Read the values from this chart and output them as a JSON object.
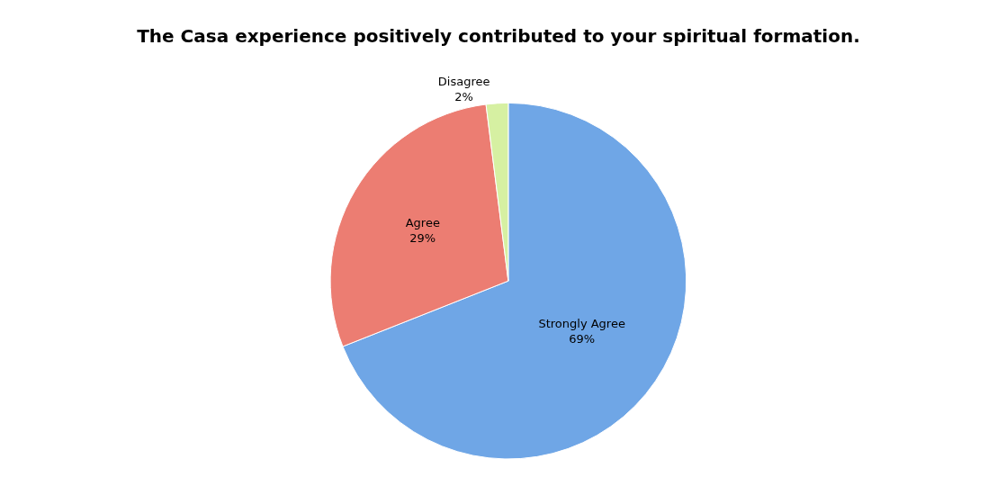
{
  "chart_data": {
    "type": "pie",
    "title": "The Casa experience positively contributed to your spiritual formation.",
    "categories": [
      "Strongly Agree",
      "Agree",
      "Disagree"
    ],
    "values": [
      69,
      29,
      2
    ],
    "value_labels": [
      "69%",
      "29%",
      "2%"
    ],
    "colors": [
      "#6fa6e6",
      "#ec7d72",
      "#d6f0a2"
    ],
    "legend": false
  }
}
